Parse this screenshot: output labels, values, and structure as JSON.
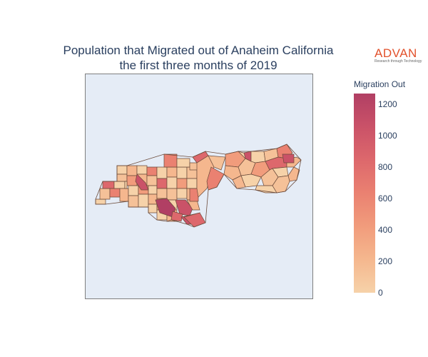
{
  "title": {
    "line1": "Population that Migrated out of Anaheim California",
    "line2": "the first three months of 2019"
  },
  "logo": {
    "word": "ADVAN",
    "tagline": "Research through Technology",
    "color": "#e2512b"
  },
  "colorbar": {
    "title": "Migration Out",
    "ticks": [
      "1200",
      "1000",
      "800",
      "600",
      "400",
      "200",
      "0"
    ],
    "range": [
      0,
      1270
    ],
    "colorscale": [
      "#f6d2a9",
      "#f5b78e",
      "#f19c7c",
      "#ea8171",
      "#dd686c",
      "#ca5268",
      "#b13f64"
    ]
  },
  "map": {
    "background": "#e5ecf6",
    "tract_stroke": "#6b4a3a"
  }
}
